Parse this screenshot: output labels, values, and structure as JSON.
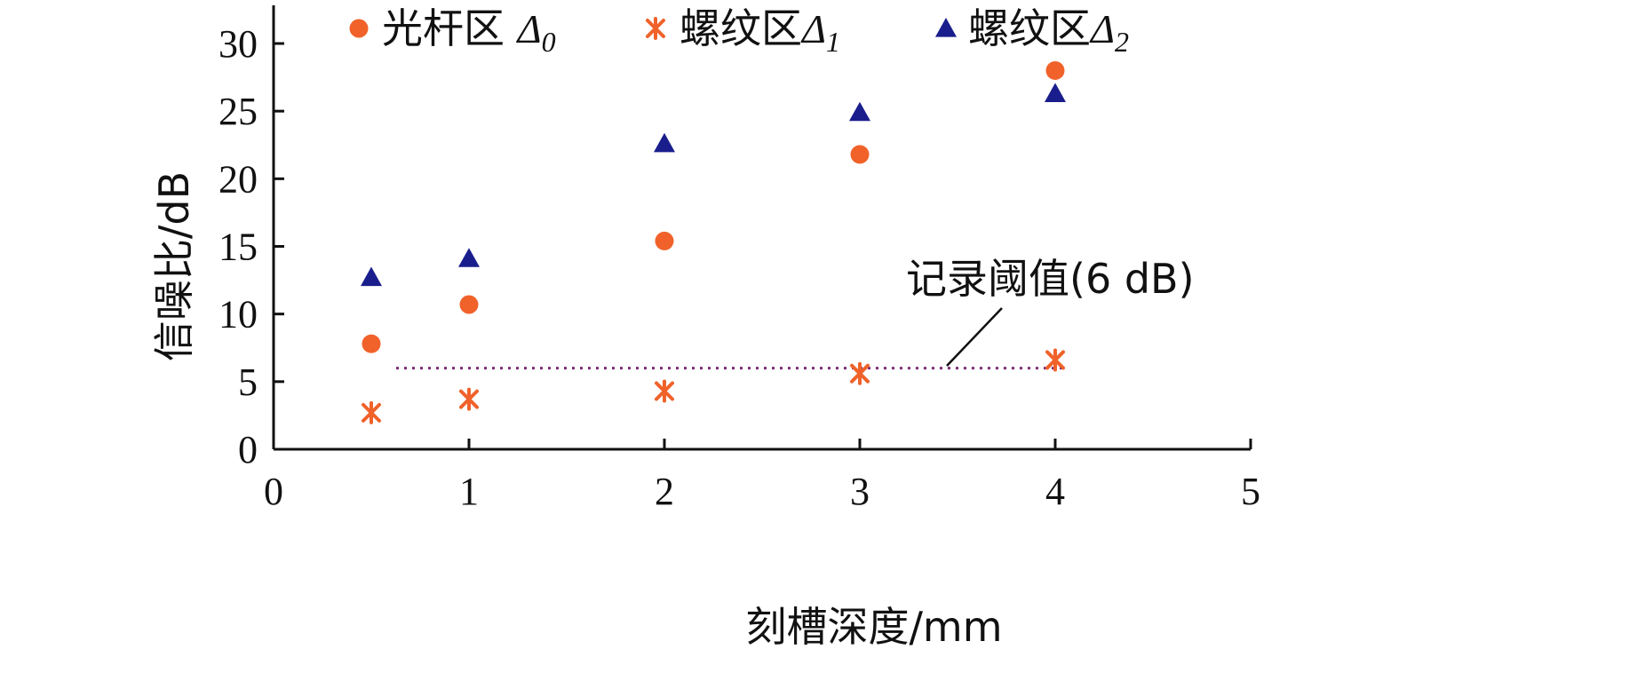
{
  "chart_data": {
    "type": "scatter",
    "xlabel": "刻槽深度/mm",
    "ylabel": "信噪比/dB",
    "xlim": [
      0,
      5
    ],
    "ylim": [
      0,
      32
    ],
    "xticks": [
      "0",
      "1",
      "2",
      "3",
      "4",
      "5"
    ],
    "yticks": [
      "0",
      "5",
      "10",
      "15",
      "20",
      "25",
      "30"
    ],
    "xtick_values": [
      0,
      1,
      2,
      3,
      4,
      5
    ],
    "ytick_values": [
      0,
      5,
      10,
      15,
      20,
      25,
      30
    ],
    "grid": false,
    "legend_position": "top",
    "series": [
      {
        "name": "光杆区 Δ0",
        "name_main": "光杆区 ",
        "name_sym": "Δ",
        "name_sub": "0",
        "marker": "circle",
        "color": "#F0622A",
        "x": [
          0.5,
          1,
          2,
          3,
          4
        ],
        "y": [
          7.8,
          10.7,
          15.4,
          21.8,
          28
        ]
      },
      {
        "name": "螺纹区 Δ1",
        "name_main": "螺纹区",
        "name_sym": "Δ",
        "name_sub": "1",
        "marker": "asterisk",
        "color": "#F0622A",
        "x": [
          0.5,
          1,
          2,
          3,
          4
        ],
        "y": [
          2.7,
          3.7,
          4.3,
          5.6,
          6.6
        ]
      },
      {
        "name": "螺纹区 Δ2",
        "name_main": "螺纹区",
        "name_sym": "Δ",
        "name_sub": "2",
        "marker": "triangle",
        "color": "#1A1E8C",
        "x": [
          0.5,
          1,
          2,
          3,
          4
        ],
        "y": [
          12.7,
          14.1,
          22.6,
          24.9,
          26.3
        ]
      }
    ],
    "threshold": {
      "value": 6,
      "x_range": [
        0.5,
        4
      ],
      "label": "记录阈值(6 dB)",
      "color": "#7A2E7A"
    }
  }
}
